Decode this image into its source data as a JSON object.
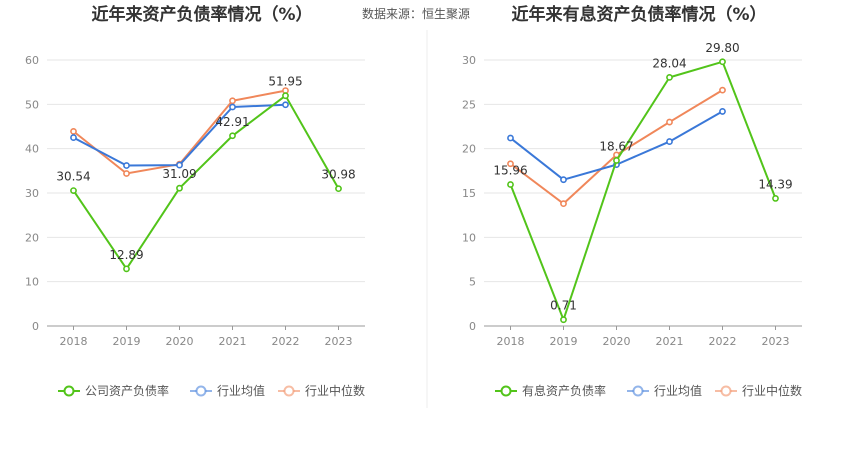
{
  "source_label": "数据来源：恒生聚源",
  "chart_data": [
    {
      "type": "line",
      "title": "近年来资产负债率情况（%）",
      "categories": [
        "2018",
        "2019",
        "2020",
        "2021",
        "2022",
        "2023"
      ],
      "ylim": [
        0,
        60
      ],
      "yticks": [
        0,
        10,
        20,
        30,
        40,
        50,
        60
      ],
      "grid": true,
      "legend_position": "bottom",
      "series": [
        {
          "name": "公司资产负债率",
          "color": "#52c41a",
          "values": [
            30.54,
            12.89,
            31.09,
            42.91,
            51.95,
            30.98
          ],
          "labels": [
            "30.54",
            "12.89",
            "31.09",
            "42.91",
            "51.95",
            "30.98"
          ]
        },
        {
          "name": "行业均值",
          "color": "#3a78d8",
          "values": [
            42.5,
            36.2,
            36.3,
            49.4,
            49.9,
            null
          ]
        },
        {
          "name": "行业中位数",
          "color": "#f0875a",
          "values": [
            43.9,
            34.4,
            36.5,
            50.8,
            53.1,
            null
          ]
        }
      ]
    },
    {
      "type": "line",
      "title": "近年来有息资产负债率情况（%）",
      "categories": [
        "2018",
        "2019",
        "2020",
        "2021",
        "2022",
        "2023"
      ],
      "ylim": [
        0,
        30
      ],
      "yticks": [
        0,
        5,
        10,
        15,
        20,
        25,
        30
      ],
      "grid": true,
      "legend_position": "bottom",
      "series": [
        {
          "name": "有息资产负债率",
          "color": "#52c41a",
          "values": [
            15.96,
            0.71,
            18.67,
            28.04,
            29.8,
            14.39
          ],
          "labels": [
            "15.96",
            "0.71",
            "18.67",
            "28.04",
            "29.80",
            "14.39"
          ]
        },
        {
          "name": "行业均值",
          "color": "#3a78d8",
          "values": [
            21.2,
            16.5,
            18.2,
            20.8,
            24.2,
            null
          ]
        },
        {
          "name": "行业中位数",
          "color": "#f0875a",
          "values": [
            18.3,
            13.8,
            19.3,
            23.0,
            26.6,
            null
          ]
        }
      ]
    }
  ]
}
